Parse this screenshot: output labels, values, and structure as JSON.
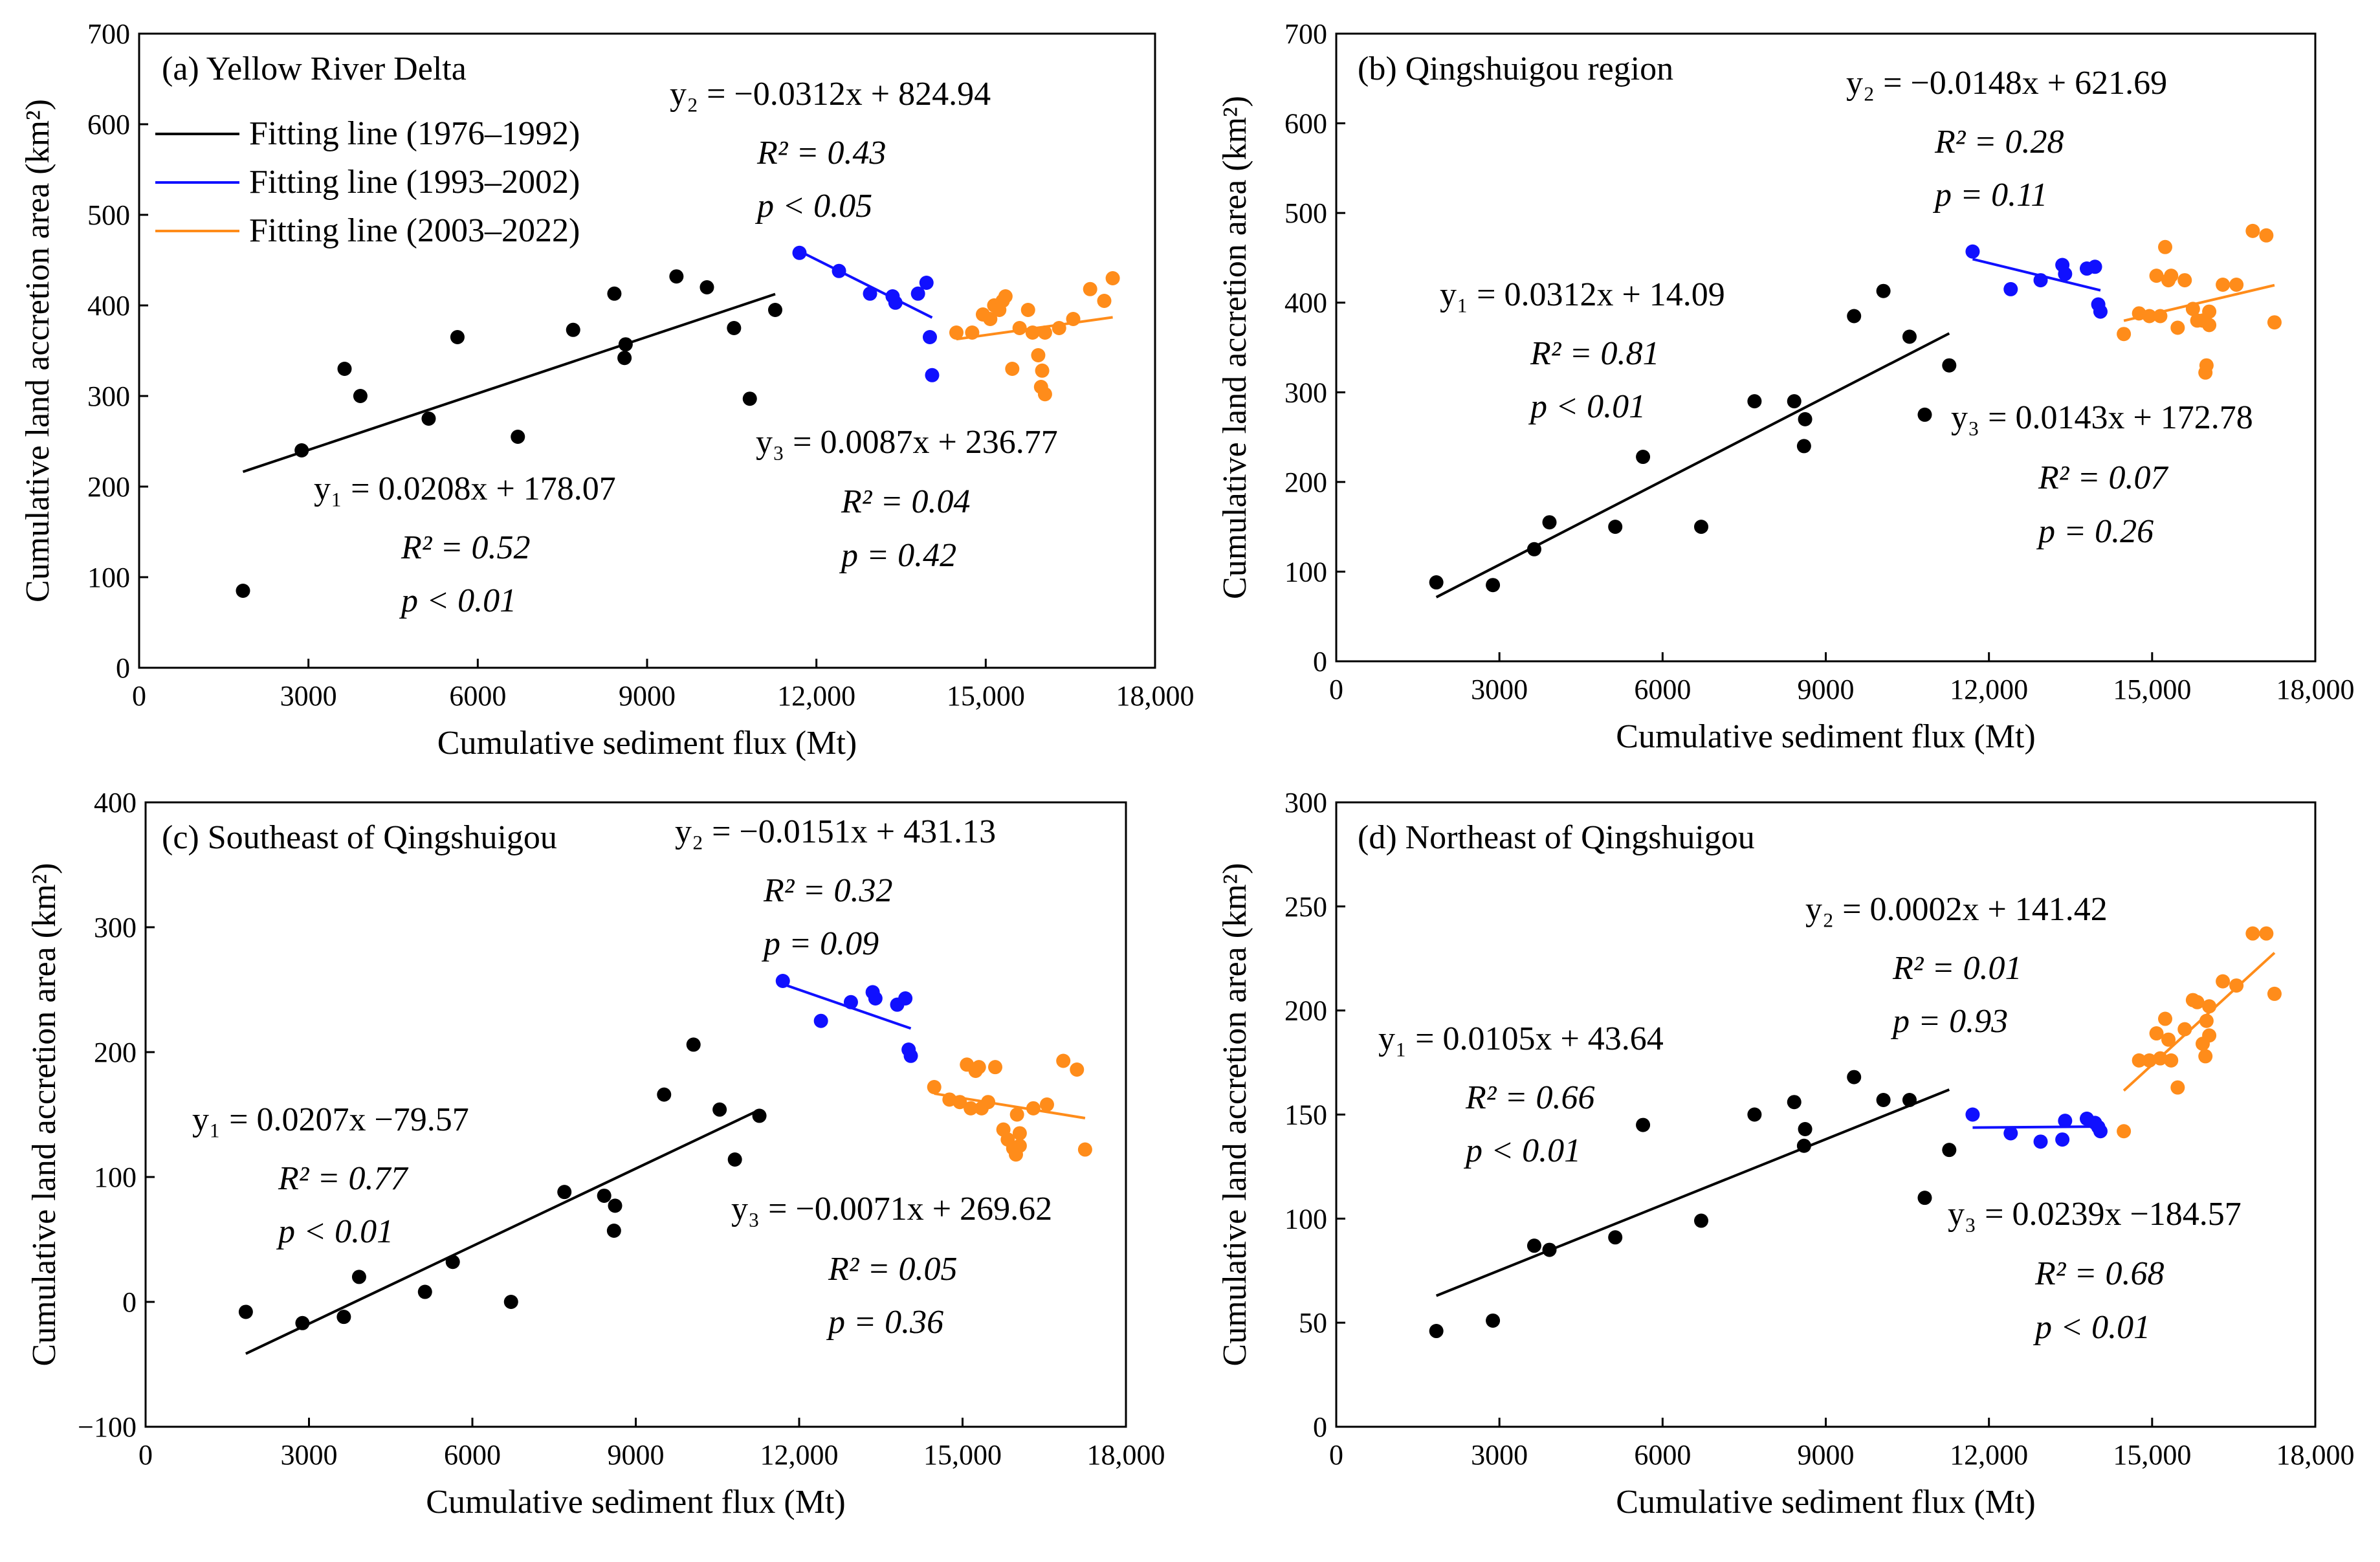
{
  "colors": {
    "p1": "#000000",
    "p2": "#1010ff",
    "p3": "#ff8c1a"
  },
  "legend": [
    {
      "label": "Fitting line (1976–1992)",
      "color": "#000000"
    },
    {
      "label": "Fitting line (1993–2002)",
      "color": "#1010ff"
    },
    {
      "label": "Fitting line (2003–2022)",
      "color": "#ff8c1a"
    }
  ],
  "chart_data": [
    {
      "type": "scatter",
      "title": "(a) Yellow River Delta",
      "xlabel": "Cumulative sediment flux (Mt)",
      "ylabel": "Cumulative land accretion area (km²)",
      "xlim": [
        0,
        18000
      ],
      "ylim": [
        0,
        700
      ],
      "xticks": [
        "0",
        "3000",
        "6000",
        "9000",
        "12,000",
        "15,000",
        "18,000"
      ],
      "yticks": [
        "0",
        "100",
        "200",
        "300",
        "400",
        "500",
        "600",
        "700"
      ],
      "series": [
        {
          "name": "1976–1992",
          "x": [
            1840,
            2880,
            3640,
            3920,
            5130,
            5640,
            6710,
            7690,
            8420,
            8600,
            8620,
            9520,
            10060,
            10540,
            10820,
            11270
          ],
          "y": [
            85,
            240,
            330,
            300,
            275,
            365,
            255,
            373,
            413,
            342,
            357,
            432,
            420,
            375,
            297,
            395
          ]
        },
        {
          "name": "1993–2002",
          "x": [
            11700,
            12400,
            12950,
            13350,
            13400,
            13800,
            13950,
            14010,
            14050
          ],
          "y": [
            458,
            438,
            413,
            410,
            403,
            413,
            425,
            365,
            323
          ]
        },
        {
          "name": "2003–2022",
          "x": [
            14480,
            14760,
            14950,
            15080,
            15150,
            15240,
            15300,
            15350,
            15470,
            15600,
            15750,
            15830,
            15930,
            15980,
            16000,
            16050,
            16050,
            16300,
            16550,
            16850,
            17100,
            17250
          ],
          "y": [
            370,
            370,
            390,
            385,
            400,
            395,
            405,
            410,
            330,
            375,
            395,
            370,
            345,
            310,
            328,
            302,
            370,
            375,
            385,
            418,
            405,
            430
          ]
        }
      ],
      "fits": [
        {
          "label": "y₁ = 0.0208x + 178.07",
          "r2": "R² = 0.52",
          "p": "p < 0.01",
          "slope": 0.0208,
          "intercept": 178.07,
          "x_range": [
            1840,
            11270
          ]
        },
        {
          "label": "y₂ = −0.0312x + 824.94",
          "r2": "R² = 0.43",
          "p": "p < 0.05",
          "slope": -0.0312,
          "intercept": 824.94,
          "x_range": [
            11700,
            14050
          ]
        },
        {
          "label": "y₃ = 0.0087x + 236.77",
          "r2": "R² = 0.04",
          "p": "p = 0.42",
          "slope": 0.0087,
          "intercept": 236.77,
          "x_range": [
            14480,
            17250
          ]
        }
      ]
    },
    {
      "type": "scatter",
      "title": "(b) Qingshuigou region",
      "xlabel": "Cumulative sediment flux (Mt)",
      "ylabel": "Cumulative land accretion area (km²)",
      "xlim": [
        0,
        18000
      ],
      "ylim": [
        0,
        700
      ],
      "xticks": [
        "0",
        "3000",
        "6000",
        "9000",
        "12,000",
        "15,000",
        "18,000"
      ],
      "yticks": [
        "0",
        "100",
        "200",
        "300",
        "400",
        "500",
        "600",
        "700"
      ],
      "series": [
        {
          "name": "1976–1992",
          "x": [
            1840,
            2880,
            3640,
            3920,
            5130,
            5640,
            6710,
            7690,
            8420,
            8600,
            8620,
            9520,
            10060,
            10540,
            10820,
            11270
          ],
          "y": [
            88,
            85,
            125,
            155,
            150,
            228,
            150,
            290,
            290,
            240,
            270,
            385,
            413,
            362,
            275,
            330
          ]
        },
        {
          "name": "1993–2002",
          "x": [
            11700,
            12400,
            12950,
            13350,
            13400,
            13800,
            13950,
            14010,
            14050
          ],
          "y": [
            457,
            415,
            425,
            442,
            432,
            438,
            440,
            398,
            390
          ]
        },
        {
          "name": "2003–2022",
          "x": [
            14480,
            14760,
            14950,
            15080,
            15150,
            15240,
            15300,
            15350,
            15470,
            15600,
            15750,
            15830,
            15930,
            15980,
            16000,
            16050,
            16050,
            16300,
            16550,
            16850,
            17100,
            17250
          ],
          "y": [
            365,
            388,
            385,
            430,
            385,
            462,
            425,
            430,
            372,
            425,
            393,
            380,
            380,
            322,
            330,
            390,
            375,
            420,
            420,
            480,
            475,
            378
          ]
        }
      ],
      "fits": [
        {
          "label": "y₁ = 0.0312x + 14.09",
          "r2": "R² = 0.81",
          "p": "p < 0.01",
          "slope": 0.0312,
          "intercept": 14.09,
          "x_range": [
            1840,
            11270
          ]
        },
        {
          "label": "y₂ = −0.0148x + 621.69",
          "r2": "R² = 0.28",
          "p": "p = 0.11",
          "slope": -0.0148,
          "intercept": 621.69,
          "x_range": [
            11700,
            14050
          ]
        },
        {
          "label": "y₃ = 0.0143x + 172.78",
          "r2": "R² = 0.07",
          "p": "p = 0.26",
          "slope": 0.0143,
          "intercept": 172.78,
          "x_range": [
            14480,
            17250
          ]
        }
      ]
    },
    {
      "type": "scatter",
      "title": "(c) Southeast of Qingshuigou",
      "xlabel": "Cumulative sediment flux (Mt)",
      "ylabel": "Cumulative land accretion area (km²)",
      "xlim": [
        0,
        18000
      ],
      "ylim": [
        -100,
        400
      ],
      "xticks": [
        "0",
        "3000",
        "6000",
        "9000",
        "12,000",
        "15,000",
        "18,000"
      ],
      "yticks": [
        "−100",
        "0",
        "100",
        "200",
        "300",
        "400"
      ],
      "series": [
        {
          "name": "1976–1992",
          "x": [
            1840,
            2880,
            3640,
            3920,
            5130,
            5640,
            6710,
            7690,
            8420,
            8600,
            8620,
            9520,
            10060,
            10540,
            10820,
            11270
          ],
          "y": [
            -8,
            -17,
            -12,
            20,
            8,
            32,
            0,
            88,
            85,
            57,
            77,
            166,
            206,
            154,
            114,
            149
          ]
        },
        {
          "name": "1993–2002",
          "x": [
            11700,
            12400,
            12950,
            13350,
            13400,
            13800,
            13950,
            14010,
            14050
          ],
          "y": [
            257,
            225,
            240,
            248,
            243,
            238,
            243,
            202,
            197
          ]
        },
        {
          "name": "2003–2022",
          "x": [
            14480,
            14760,
            14950,
            15080,
            15150,
            15240,
            15300,
            15350,
            15470,
            15600,
            15750,
            15830,
            15930,
            15980,
            16000,
            16050,
            16050,
            16300,
            16550,
            16850,
            17100,
            17250
          ],
          "y": [
            172,
            162,
            160,
            190,
            155,
            185,
            188,
            155,
            160,
            188,
            138,
            130,
            123,
            118,
            150,
            125,
            135,
            155,
            158,
            193,
            186,
            122
          ]
        }
      ],
      "fits": [
        {
          "label": "y₁ = 0.0207x −79.57",
          "r2": "R² = 0.77",
          "p": "p < 0.01",
          "slope": 0.0207,
          "intercept": -79.57,
          "x_range": [
            1840,
            11270
          ]
        },
        {
          "label": "y₂ = −0.0151x + 431.13",
          "r2": "R² = 0.32",
          "p": "p = 0.09",
          "slope": -0.0151,
          "intercept": 431.13,
          "x_range": [
            11700,
            14050
          ]
        },
        {
          "label": "y₃ = −0.0071x + 269.62",
          "r2": "R² = 0.05",
          "p": "p = 0.36",
          "slope": -0.0071,
          "intercept": 269.62,
          "x_range": [
            14480,
            17250
          ]
        }
      ]
    },
    {
      "type": "scatter",
      "title": "(d) Northeast of Qingshuigou",
      "xlabel": "Cumulative sediment flux (Mt)",
      "ylabel": "Cumulative land accretion area (km²)",
      "xlim": [
        0,
        18000
      ],
      "ylim": [
        0,
        300
      ],
      "xticks": [
        "0",
        "3000",
        "6000",
        "9000",
        "12,000",
        "15,000",
        "18,000"
      ],
      "yticks": [
        "0",
        "50",
        "100",
        "150",
        "200",
        "250",
        "300"
      ],
      "series": [
        {
          "name": "1976–1992",
          "x": [
            1840,
            2880,
            3640,
            3920,
            5130,
            5640,
            6710,
            7690,
            8420,
            8600,
            8620,
            9520,
            10060,
            10540,
            10820,
            11270
          ],
          "y": [
            46,
            51,
            87,
            85,
            91,
            145,
            99,
            150,
            156,
            135,
            143,
            168,
            157,
            157,
            110,
            133
          ]
        },
        {
          "name": "1993–2002",
          "x": [
            11700,
            12400,
            12950,
            13350,
            13400,
            13800,
            13950,
            14010,
            14050
          ],
          "y": [
            150,
            141,
            137,
            138,
            147,
            148,
            146,
            144,
            142
          ]
        },
        {
          "name": "2003–2022",
          "x": [
            14480,
            14760,
            14950,
            15080,
            15150,
            15240,
            15300,
            15350,
            15470,
            15600,
            15750,
            15830,
            15930,
            15980,
            16000,
            16050,
            16050,
            16300,
            16550,
            16850,
            17100,
            17250
          ],
          "y": [
            142,
            176,
            176,
            189,
            177,
            196,
            186,
            176,
            163,
            191,
            205,
            204,
            184,
            178,
            195,
            188,
            202,
            214,
            212,
            237,
            237,
            208
          ]
        }
      ],
      "fits": [
        {
          "label": "y₁ = 0.0105x + 43.64",
          "r2": "R² = 0.66",
          "p": "p < 0.01",
          "slope": 0.0105,
          "intercept": 43.64,
          "x_range": [
            1840,
            11270
          ]
        },
        {
          "label": "y₂ = 0.0002x + 141.42",
          "r2": "R² = 0.01",
          "p": "p = 0.93",
          "slope": 0.0002,
          "intercept": 141.42,
          "x_range": [
            11700,
            14050
          ]
        },
        {
          "label": "y₃ = 0.0239x −184.57",
          "r2": "R² = 0.68",
          "p": "p < 0.01",
          "slope": 0.0239,
          "intercept": -184.57,
          "x_range": [
            14480,
            17250
          ]
        }
      ]
    }
  ]
}
